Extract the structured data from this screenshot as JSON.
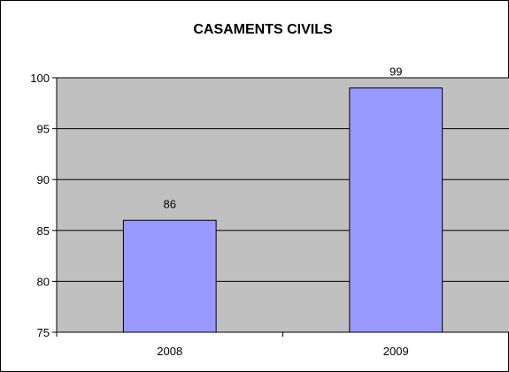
{
  "chart_data": {
    "type": "bar",
    "title": "CASAMENTS CIVILS",
    "xlabel": "",
    "ylabel": "",
    "categories": [
      "2008",
      "2009"
    ],
    "values": [
      86,
      99
    ],
    "ylim": [
      75,
      100
    ],
    "yticks": [
      75,
      80,
      85,
      90,
      95,
      100
    ],
    "ytick_labels": [
      "75",
      "80",
      "85",
      "90",
      "95",
      "100"
    ],
    "data_labels": [
      "86",
      "99"
    ],
    "grid": true,
    "legend": "none"
  },
  "colors": {
    "plot_background": "#c0c0c0",
    "bar_fill": "#9999ff",
    "bar_stroke": "#000000",
    "gridline": "#000000"
  }
}
